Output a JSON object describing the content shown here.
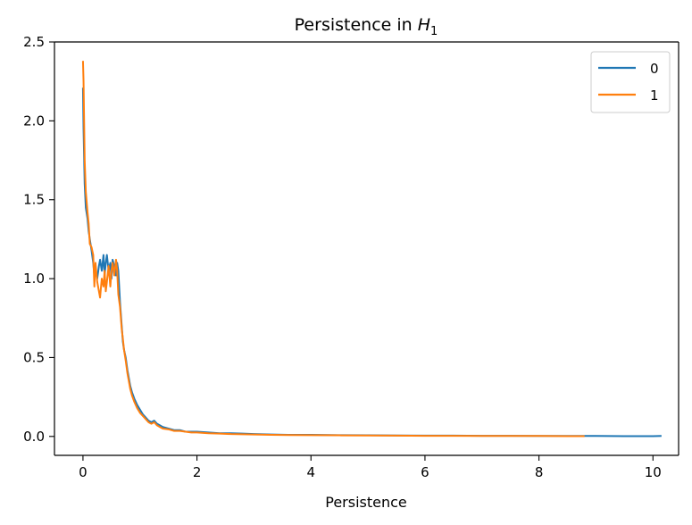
{
  "chart_data": {
    "type": "line",
    "title": "Persistence in",
    "title_math": "H",
    "title_subscript": "1",
    "xlabel": "Persistence",
    "ylabel": "",
    "xlim": [
      -0.5,
      10.45
    ],
    "ylim": [
      -0.12,
      2.5
    ],
    "xticks": [
      0,
      2,
      4,
      6,
      8,
      10
    ],
    "yticks": [
      0.0,
      0.5,
      1.0,
      1.5,
      2.0,
      2.5
    ],
    "xtick_labels": [
      "0",
      "2",
      "4",
      "6",
      "8",
      "10"
    ],
    "ytick_labels": [
      "0.0",
      "0.5",
      "1.0",
      "1.5",
      "2.0",
      "2.5"
    ],
    "grid": false,
    "legend_position": "top-right",
    "series": [
      {
        "name": "0",
        "color": "#1f77b4",
        "x": [
          0.0,
          0.01,
          0.03,
          0.05,
          0.08,
          0.1,
          0.12,
          0.15,
          0.18,
          0.2,
          0.22,
          0.25,
          0.28,
          0.3,
          0.33,
          0.36,
          0.38,
          0.4,
          0.42,
          0.45,
          0.48,
          0.5,
          0.52,
          0.55,
          0.58,
          0.6,
          0.62,
          0.65,
          0.68,
          0.7,
          0.72,
          0.75,
          0.78,
          0.8,
          0.83,
          0.86,
          0.9,
          0.95,
          1.0,
          1.05,
          1.1,
          1.15,
          1.2,
          1.25,
          1.3,
          1.35,
          1.4,
          1.5,
          1.6,
          1.7,
          1.8,
          1.9,
          2.0,
          2.2,
          2.4,
          2.6,
          2.8,
          3.0,
          3.3,
          3.6,
          4.0,
          4.5,
          5.0,
          5.5,
          6.0,
          6.5,
          7.0,
          7.5,
          8.0,
          8.5,
          9.0,
          9.5,
          10.0,
          10.15
        ],
        "y": [
          2.21,
          1.95,
          1.6,
          1.45,
          1.38,
          1.3,
          1.25,
          1.18,
          1.1,
          1.02,
          1.05,
          1.0,
          1.08,
          1.12,
          1.05,
          1.15,
          1.02,
          1.1,
          1.15,
          1.05,
          1.1,
          1.0,
          1.12,
          1.08,
          1.02,
          1.1,
          1.05,
          0.85,
          0.7,
          0.6,
          0.55,
          0.5,
          0.42,
          0.38,
          0.32,
          0.28,
          0.24,
          0.2,
          0.17,
          0.14,
          0.12,
          0.1,
          0.09,
          0.1,
          0.08,
          0.07,
          0.06,
          0.05,
          0.04,
          0.04,
          0.03,
          0.03,
          0.03,
          0.025,
          0.02,
          0.02,
          0.018,
          0.015,
          0.012,
          0.01,
          0.01,
          0.008,
          0.007,
          0.006,
          0.005,
          0.005,
          0.004,
          0.004,
          0.003,
          0.003,
          0.003,
          0.002,
          0.002,
          0.003
        ]
      },
      {
        "name": "1",
        "color": "#ff7f0e",
        "x": [
          0.0,
          0.01,
          0.03,
          0.05,
          0.08,
          0.1,
          0.12,
          0.15,
          0.18,
          0.2,
          0.22,
          0.25,
          0.28,
          0.3,
          0.33,
          0.36,
          0.38,
          0.4,
          0.42,
          0.45,
          0.48,
          0.5,
          0.52,
          0.55,
          0.58,
          0.6,
          0.62,
          0.65,
          0.68,
          0.7,
          0.72,
          0.75,
          0.78,
          0.8,
          0.83,
          0.86,
          0.9,
          0.95,
          1.0,
          1.05,
          1.1,
          1.15,
          1.2,
          1.25,
          1.3,
          1.35,
          1.4,
          1.5,
          1.6,
          1.7,
          1.8,
          1.9,
          2.0,
          2.2,
          2.4,
          2.6,
          2.8,
          3.0,
          3.3,
          3.6,
          4.0,
          4.5,
          5.0,
          5.5,
          6.0,
          6.5,
          7.0,
          7.5,
          8.0,
          8.5,
          8.8
        ],
        "y": [
          2.38,
          2.25,
          1.75,
          1.55,
          1.42,
          1.35,
          1.22,
          1.2,
          1.15,
          0.95,
          1.1,
          0.98,
          0.92,
          0.88,
          1.0,
          0.95,
          1.05,
          0.92,
          0.98,
          1.08,
          0.95,
          1.05,
          1.1,
          1.02,
          1.12,
          1.05,
          0.9,
          0.82,
          0.68,
          0.62,
          0.55,
          0.48,
          0.4,
          0.36,
          0.3,
          0.26,
          0.22,
          0.18,
          0.15,
          0.13,
          0.11,
          0.09,
          0.08,
          0.09,
          0.07,
          0.06,
          0.05,
          0.045,
          0.035,
          0.035,
          0.03,
          0.025,
          0.025,
          0.02,
          0.018,
          0.015,
          0.014,
          0.012,
          0.01,
          0.009,
          0.008,
          0.007,
          0.006,
          0.005,
          0.004,
          0.004,
          0.003,
          0.003,
          0.003,
          0.002,
          0.002
        ]
      }
    ]
  }
}
